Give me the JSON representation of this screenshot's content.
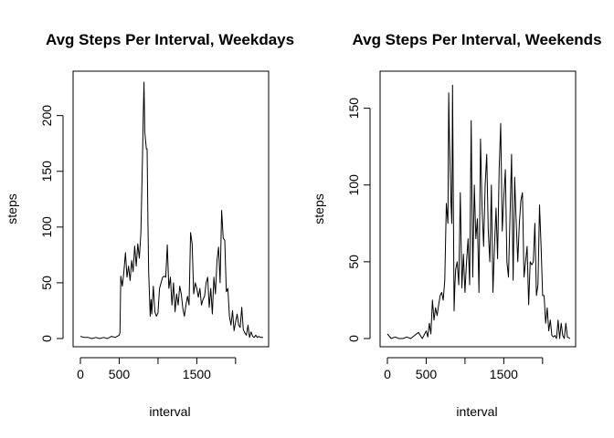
{
  "chart_data": [
    {
      "type": "line",
      "title": "Avg Steps Per Interval, Weekdays",
      "xlabel": "interval",
      "ylabel": "steps",
      "xlim": [
        0,
        2355
      ],
      "ylim": [
        0,
        230
      ],
      "xticks": [
        0,
        500,
        1500
      ],
      "yticks": [
        0,
        50,
        100,
        150,
        200
      ],
      "grid": false,
      "series": [
        {
          "x": [
            0,
            50,
            100,
            150,
            200,
            250,
            300,
            350,
            400,
            450,
            500,
            510,
            520,
            540,
            560,
            580,
            600,
            620,
            640,
            660,
            680,
            700,
            720,
            740,
            760,
            780,
            800,
            810,
            820,
            830,
            840,
            850,
            860,
            870,
            880,
            900,
            910,
            920,
            940,
            960,
            980,
            1000,
            1020,
            1040,
            1060,
            1080,
            1100,
            1120,
            1140,
            1160,
            1180,
            1200,
            1220,
            1240,
            1260,
            1280,
            1300,
            1320,
            1340,
            1360,
            1380,
            1400,
            1420,
            1440,
            1460,
            1480,
            1500,
            1520,
            1540,
            1560,
            1580,
            1600,
            1620,
            1640,
            1660,
            1680,
            1700,
            1720,
            1740,
            1760,
            1780,
            1800,
            1820,
            1840,
            1860,
            1880,
            1900,
            1920,
            1940,
            1960,
            1980,
            2000,
            2020,
            2040,
            2060,
            2080,
            2100,
            2120,
            2140,
            2160,
            2180,
            2200,
            2220,
            2240,
            2260,
            2280,
            2300,
            2320,
            2355
          ],
          "y": [
            2,
            1,
            1,
            0,
            1,
            0,
            1,
            0,
            2,
            1,
            3,
            5,
            56,
            47,
            60,
            77,
            55,
            65,
            52,
            70,
            60,
            83,
            65,
            85,
            72,
            95,
            160,
            200,
            230,
            185,
            178,
            170,
            170,
            105,
            60,
            20,
            35,
            22,
            47,
            24,
            20,
            23,
            45,
            50,
            55,
            56,
            55,
            84,
            45,
            55,
            30,
            50,
            24,
            40,
            30,
            47,
            40,
            27,
            20,
            30,
            38,
            30,
            95,
            85,
            40,
            50,
            45,
            37,
            45,
            30,
            35,
            38,
            50,
            55,
            28,
            45,
            22,
            55,
            40,
            70,
            82,
            50,
            115,
            90,
            88,
            42,
            45,
            20,
            12,
            25,
            7,
            15,
            22,
            12,
            10,
            28,
            8,
            5,
            3,
            12,
            1,
            6,
            2,
            1,
            3,
            1,
            2,
            1,
            1
          ]
        }
      ]
    },
    {
      "type": "line",
      "title": "Avg Steps Per Interval, Weekends",
      "xlabel": "interval",
      "ylabel": "steps",
      "xlim": [
        0,
        2355
      ],
      "ylim": [
        0,
        167
      ],
      "xticks": [
        0,
        500,
        1500
      ],
      "yticks": [
        0,
        50,
        100,
        150
      ],
      "grid": false,
      "series": [
        {
          "x": [
            0,
            50,
            100,
            150,
            200,
            250,
            300,
            350,
            400,
            450,
            500,
            520,
            540,
            560,
            580,
            600,
            620,
            640,
            660,
            680,
            700,
            720,
            740,
            760,
            780,
            790,
            800,
            820,
            830,
            840,
            860,
            870,
            880,
            900,
            920,
            940,
            960,
            980,
            1000,
            1020,
            1040,
            1060,
            1080,
            1100,
            1120,
            1140,
            1160,
            1180,
            1200,
            1220,
            1240,
            1260,
            1280,
            1300,
            1320,
            1340,
            1360,
            1380,
            1400,
            1420,
            1440,
            1460,
            1480,
            1500,
            1520,
            1540,
            1560,
            1580,
            1600,
            1620,
            1640,
            1660,
            1680,
            1700,
            1720,
            1740,
            1760,
            1780,
            1800,
            1820,
            1840,
            1860,
            1880,
            1900,
            1920,
            1940,
            1960,
            1980,
            2000,
            2020,
            2040,
            2060,
            2080,
            2100,
            2120,
            2140,
            2160,
            2180,
            2200,
            2220,
            2240,
            2260,
            2280,
            2300,
            2320,
            2355
          ],
          "y": [
            3,
            0,
            1,
            0,
            0,
            1,
            0,
            2,
            4,
            0,
            5,
            1,
            10,
            3,
            25,
            12,
            20,
            15,
            22,
            28,
            30,
            25,
            38,
            88,
            75,
            160,
            130,
            88,
            75,
            165,
            18,
            35,
            45,
            50,
            35,
            95,
            33,
            55,
            30,
            50,
            65,
            35,
            142,
            40,
            100,
            65,
            78,
            30,
            130,
            85,
            60,
            100,
            120,
            70,
            50,
            100,
            30,
            60,
            85,
            52,
            110,
            140,
            70,
            92,
            110,
            50,
            40,
            80,
            120,
            38,
            105,
            75,
            50,
            75,
            90,
            95,
            40,
            50,
            60,
            22,
            50,
            48,
            50,
            75,
            28,
            35,
            87,
            60,
            28,
            28,
            10,
            20,
            5,
            12,
            2,
            1,
            2,
            0,
            12,
            0,
            10,
            2,
            0,
            10,
            1,
            0
          ]
        }
      ]
    }
  ]
}
